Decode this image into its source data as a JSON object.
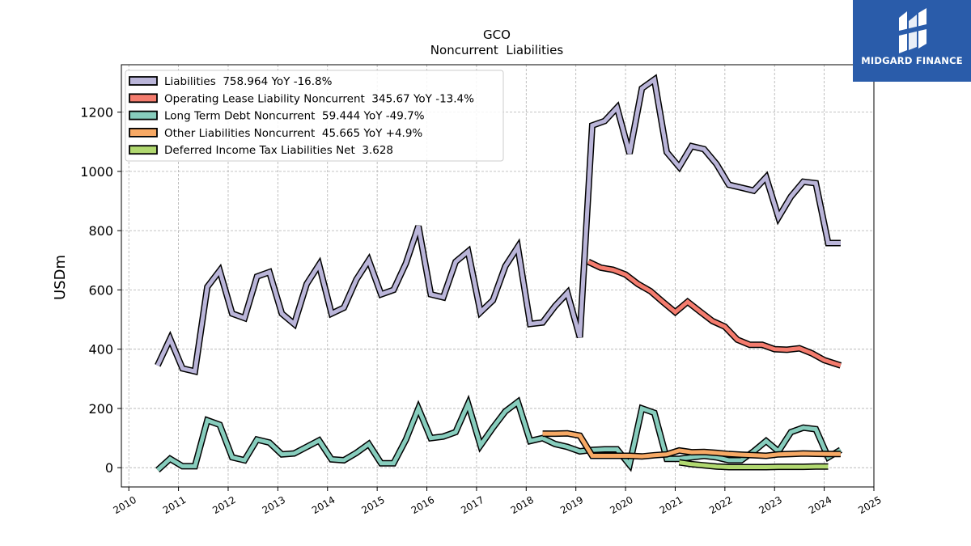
{
  "header": {
    "ticker": "GCO",
    "subtitle": "Noncurrent  Liabilities"
  },
  "brand": {
    "name": "MIDGARD FINANCE",
    "color": "#2a5caa"
  },
  "chart_data": {
    "type": "line",
    "title": "GCO",
    "subtitle": "Noncurrent  Liabilities",
    "ylabel": "USDm",
    "xlabel": "",
    "xlim": [
      2009.85,
      2025.0
    ],
    "ylim": [
      -65,
      1360
    ],
    "grid": true,
    "legend_position": "top-left",
    "x_ticks": [
      2010,
      2011,
      2012,
      2013,
      2014,
      2015,
      2016,
      2017,
      2018,
      2019,
      2020,
      2021,
      2022,
      2023,
      2024,
      2025
    ],
    "y_ticks": [
      0,
      200,
      400,
      600,
      800,
      1000,
      1200
    ],
    "series": [
      {
        "name": "Liabilities",
        "legend_label": "Liabilities  758.964 YoY -16.8%",
        "color": "#bab5d9",
        "x": [
          2010.58,
          2010.83,
          2011.08,
          2011.33,
          2011.58,
          2011.83,
          2012.08,
          2012.33,
          2012.58,
          2012.83,
          2013.08,
          2013.33,
          2013.58,
          2013.83,
          2014.08,
          2014.33,
          2014.58,
          2014.83,
          2015.08,
          2015.33,
          2015.58,
          2015.83,
          2016.08,
          2016.33,
          2016.58,
          2016.83,
          2017.08,
          2017.33,
          2017.58,
          2017.83,
          2018.08,
          2018.33,
          2018.58,
          2018.83,
          2019.08,
          2019.33,
          2019.58,
          2019.83,
          2020.08,
          2020.33,
          2020.58,
          2020.83,
          2021.08,
          2021.33,
          2021.58,
          2021.83,
          2022.08,
          2022.33,
          2022.58,
          2022.83,
          2023.08,
          2023.33,
          2023.58,
          2023.83,
          2024.08,
          2024.33
        ],
        "y": [
          345,
          435,
          335,
          325,
          610,
          665,
          520,
          505,
          645,
          660,
          520,
          485,
          620,
          685,
          520,
          540,
          635,
          700,
          585,
          600,
          690,
          815,
          585,
          575,
          695,
          730,
          525,
          565,
          680,
          745,
          485,
          490,
          545,
          590,
          440,
          1155,
          1170,
          1215,
          1060,
          1280,
          1310,
          1065,
          1015,
          1085,
          1075,
          1025,
          955,
          945,
          935,
          980,
          845,
          915,
          965,
          960,
          758,
          758
        ]
      },
      {
        "name": "Operating Lease Liability Noncurrent",
        "legend_label": "Operating Lease Liability Noncurrent  345.67 YoY -13.4%",
        "color": "#f47c6e",
        "x": [
          2019.25,
          2019.5,
          2019.75,
          2020.0,
          2020.25,
          2020.5,
          2020.75,
          2021.0,
          2021.25,
          2021.5,
          2021.75,
          2022.0,
          2022.25,
          2022.5,
          2022.75,
          2023.0,
          2023.25,
          2023.5,
          2023.75,
          2024.0,
          2024.33
        ],
        "y": [
          695,
          675,
          668,
          652,
          620,
          596,
          560,
          525,
          560,
          527,
          495,
          476,
          432,
          415,
          415,
          400,
          398,
          403,
          386,
          363,
          345
        ]
      },
      {
        "name": "Long Term Debt Noncurrent",
        "legend_label": "Long Term Debt Noncurrent  59.444 YoY -49.7%",
        "color": "#87cdbd",
        "x": [
          2010.58,
          2010.83,
          2011.08,
          2011.33,
          2011.58,
          2011.83,
          2012.08,
          2012.33,
          2012.58,
          2012.83,
          2013.08,
          2013.33,
          2013.58,
          2013.83,
          2014.08,
          2014.33,
          2014.58,
          2014.83,
          2015.08,
          2015.33,
          2015.58,
          2015.83,
          2016.08,
          2016.33,
          2016.58,
          2016.83,
          2017.08,
          2017.33,
          2017.58,
          2017.83,
          2018.08,
          2018.33,
          2018.58,
          2018.83,
          2019.08,
          2019.33,
          2019.58,
          2019.83,
          2020.08,
          2020.33,
          2020.58,
          2020.83,
          2021.08,
          2021.33,
          2021.58,
          2021.83,
          2022.08,
          2022.33,
          2022.58,
          2022.83,
          2023.08,
          2023.33,
          2023.58,
          2023.83,
          2024.08,
          2024.33
        ],
        "y": [
          -8,
          30,
          5,
          5,
          160,
          145,
          35,
          25,
          95,
          85,
          45,
          48,
          70,
          92,
          28,
          25,
          50,
          80,
          15,
          15,
          95,
          200,
          100,
          105,
          120,
          215,
          75,
          135,
          190,
          222,
          90,
          100,
          80,
          70,
          55,
          60,
          62,
          62,
          10,
          200,
          185,
          30,
          30,
          35,
          40,
          35,
          25,
          25,
          55,
          90,
          55,
          120,
          135,
          130,
          35,
          60
        ]
      },
      {
        "name": "Other Liabilities Noncurrent",
        "legend_label": "Other Liabilities Noncurrent  45.665 YoY +4.9%",
        "color": "#f7a965",
        "x": [
          2018.33,
          2018.58,
          2018.83,
          2019.08,
          2019.33,
          2019.58,
          2019.83,
          2020.08,
          2020.33,
          2020.58,
          2020.83,
          2021.08,
          2021.33,
          2021.58,
          2021.83,
          2022.08,
          2022.33,
          2022.58,
          2022.83,
          2023.08,
          2023.33,
          2023.58,
          2023.83,
          2024.08,
          2024.33
        ],
        "y": [
          115,
          115,
          116,
          108,
          40,
          40,
          40,
          40,
          38,
          42,
          45,
          58,
          52,
          53,
          50,
          46,
          44,
          42,
          40,
          45,
          46,
          48,
          47,
          46,
          46
        ]
      },
      {
        "name": "Deferred Income Tax Liabilities Net",
        "legend_label": "Deferred Income Tax Liabilities Net  3.628",
        "color": "#b1d870",
        "x": [
          2021.08,
          2021.33,
          2021.58,
          2021.83,
          2022.08,
          2022.33,
          2022.58,
          2022.83,
          2023.08,
          2023.33,
          2023.58,
          2023.83,
          2024.08
        ],
        "y": [
          18,
          12,
          8,
          4,
          2,
          2,
          2,
          2,
          3,
          3,
          3,
          4,
          4
        ]
      }
    ]
  }
}
